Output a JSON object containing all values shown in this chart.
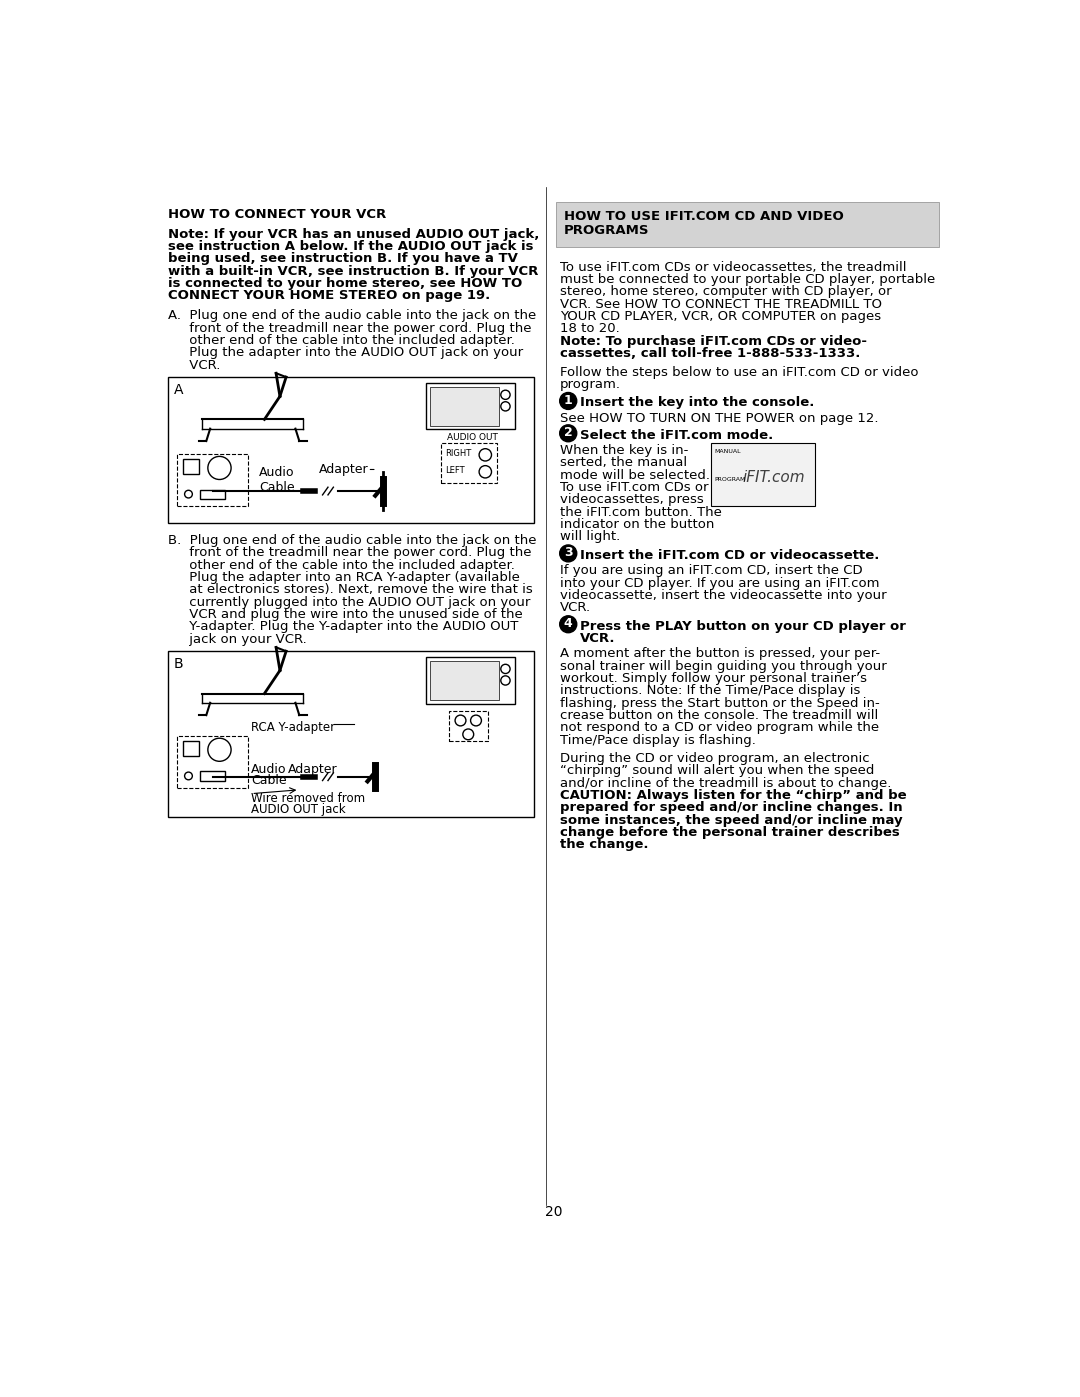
{
  "page_number": "20",
  "bg_color": "#ffffff",
  "left_col": {
    "section_title": "HOW TO CONNECT YOUR VCR",
    "note_lines": [
      "Note: If your VCR has an unused AUDIO OUT jack,",
      "see instruction A below. If the AUDIO OUT jack is",
      "being used, see instruction B. If you have a TV",
      "with a built-in VCR, see instruction B. If your VCR",
      "is connected to your home stereo, see HOW TO",
      "CONNECT YOUR HOME STEREO on page 19."
    ],
    "a_lines": [
      "A.  Plug one end of the audio cable into the jack on the",
      "     front of the treadmill near the power cord. Plug the",
      "     other end of the cable into the included adapter.",
      "     Plug the adapter into the AUDIO OUT jack on your",
      "     VCR."
    ],
    "b_lines": [
      "B.  Plug one end of the audio cable into the jack on the",
      "     front of the treadmill near the power cord. Plug the",
      "     other end of the cable into the included adapter.",
      "     Plug the adapter into an RCA Y-adapter (available",
      "     at electronics stores). Next, remove the wire that is",
      "     currently plugged into the AUDIO OUT jack on your",
      "     VCR and plug the wire into the unused side of the",
      "     Y-adapter. Plug the Y-adapter into the AUDIO OUT",
      "     jack on your VCR."
    ]
  },
  "right_col": {
    "header_bg": "#d3d3d3",
    "header_line1": "HOW TO USE IFIT.COM CD AND VIDEO",
    "header_line2": "PROGRAMS",
    "intro_lines": [
      "To use iFIT.com CDs or videocassettes, the treadmill",
      "must be connected to your portable CD player, portable",
      "stereo, home stereo, computer with CD player, or",
      "VCR. See HOW TO CONNECT THE TREADMILL TO",
      "YOUR CD PLAYER, VCR, OR COMPUTER on pages",
      "18 to 20."
    ],
    "note_bold_lines": [
      "Note: To purchase iFIT.com CDs or video-",
      "cassettes, call toll-free 1-888-533-1333."
    ],
    "follow_lines": [
      "Follow the steps below to use an iFIT.com CD or video",
      "program."
    ],
    "step1_bold": "Insert the key into the console.",
    "step1_text": "See HOW TO TURN ON THE POWER on page 12.",
    "step2_bold": "Select the iFIT.com mode.",
    "step2_lines": [
      "When the key is in-",
      "serted, the manual",
      "mode will be selected.",
      "To use iFIT.com CDs or",
      "videocassettes, press",
      "the iFIT.com button. The",
      "indicator on the button",
      "will light."
    ],
    "step3_bold": "Insert the iFIT.com CD or videocassette.",
    "step3_lines": [
      "If you are using an iFIT.com CD, insert the CD",
      "into your CD player. If you are using an iFIT.com",
      "videocassette, insert the videocassette into your",
      "VCR."
    ],
    "step4_bold1": "Press the PLAY button on your CD player or",
    "step4_bold2": "VCR.",
    "step4_lines": [
      "A moment after the button is pressed, your per-",
      "sonal trainer will begin guiding you through your",
      "workout. Simply follow your personal trainer’s",
      "instructions. Note: If the Time/Pace display is",
      "flashing, press the Start button or the Speed in-",
      "crease button on the console. The treadmill will",
      "not respond to a CD or video program while the",
      "Time/Pace display is flashing."
    ],
    "caution_normal_lines": [
      "During the CD or video program, an electronic",
      "“chirping” sound will alert you when the speed",
      "and/or incline of the treadmill is about to change."
    ],
    "caution_bold_lines": [
      "CAUTION: Always listen for the “chirp” and be",
      "prepared for speed and/or incline changes. In",
      "some instances, the speed and/or incline may",
      "change before the personal trainer describes",
      "the change."
    ]
  }
}
